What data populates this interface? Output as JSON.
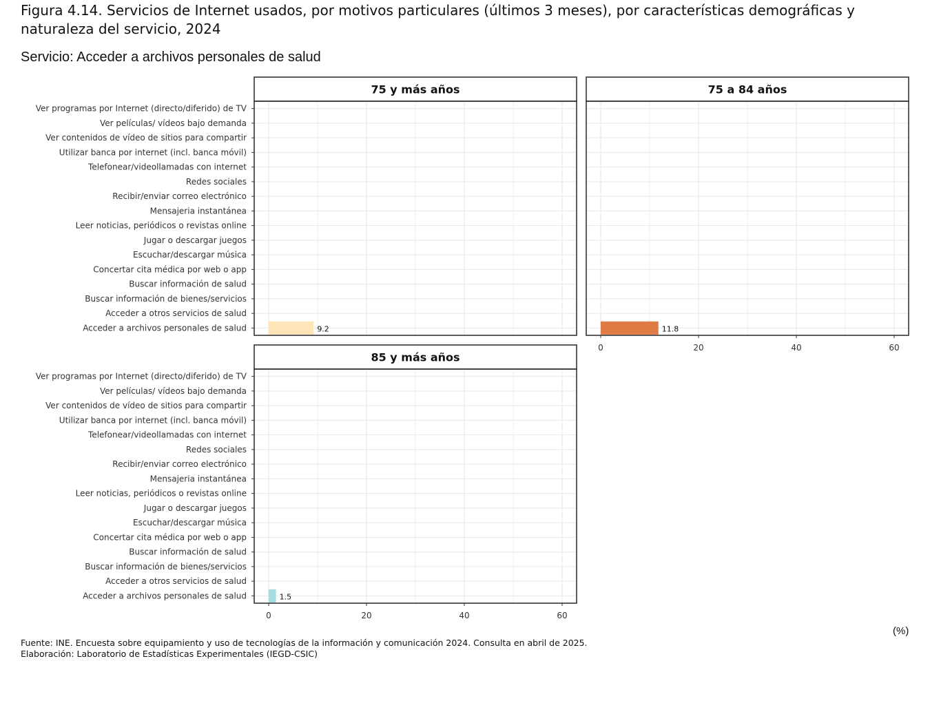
{
  "title": "Figura 4.14.  Servicios de Internet usados, por motivos particulares (últimos 3 meses), por características demográficas y naturaleza del servicio, 2024",
  "subtitle": "Servicio: Acceder a archivos personales de salud",
  "unit_label": "(%)",
  "source_line1": "Fuente: INE. Encuesta sobre equipamiento y uso de tecnologías de la información y comunicación 2024. Consulta en abril de 2025.",
  "source_line2": "Elaboración: Laboratorio de Estadísticas Experimentales (IEGD-CSIC)",
  "chart_data": {
    "type": "bar",
    "orientation": "horizontal",
    "categories": [
      "Ver programas por Internet (directo/diferido) de TV",
      "Ver películas/ vídeos bajo demanda",
      "Ver contenidos de vídeo de sitios para compartir",
      "Utilizar banca por internet (incl. banca móvil)",
      "Telefonear/videollamadas con internet",
      "Redes sociales",
      "Recibir/enviar correo electrónico",
      "Mensajeria instantánea",
      "Leer noticias, periódicos o revistas online",
      "Jugar o descargar juegos",
      "Escuchar/descargar música",
      "Concertar cita médica por web o app",
      "Buscar información de salud",
      "Buscar información de bienes/servicios",
      "Acceder a otros servicios de salud",
      "Acceder a archivos personales de salud"
    ],
    "xlim": [
      0,
      64
    ],
    "xticks": [
      0,
      20,
      40,
      60
    ],
    "grid": true,
    "panels": [
      {
        "name": "75 y más años",
        "color": "#fde5b8",
        "values": [
          null,
          null,
          null,
          null,
          null,
          null,
          null,
          null,
          null,
          null,
          null,
          null,
          null,
          null,
          null,
          9.2
        ]
      },
      {
        "name": "75 a 84 años",
        "color": "#e07b45",
        "values": [
          null,
          null,
          null,
          null,
          null,
          null,
          null,
          null,
          null,
          null,
          null,
          null,
          null,
          null,
          null,
          11.8
        ]
      },
      {
        "name": "85 y más años",
        "color": "#a8dde0",
        "values": [
          null,
          null,
          null,
          null,
          null,
          null,
          null,
          null,
          null,
          null,
          null,
          null,
          null,
          null,
          null,
          1.5
        ]
      }
    ]
  }
}
